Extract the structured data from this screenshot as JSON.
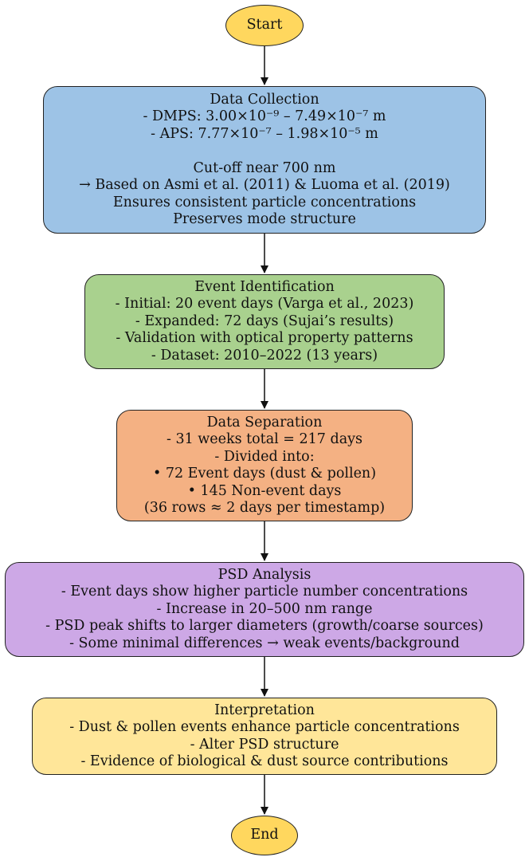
{
  "colors": {
    "terminal": "#FFD75E",
    "collection": "#9DC3E6",
    "identification": "#A9D18E",
    "separation": "#F4B183",
    "analysis": "#CDA8E6",
    "interpretation": "#FFE699",
    "border": "#222222",
    "arrow": "#111111"
  },
  "nodes": {
    "start": {
      "label": "Start"
    },
    "data_collection": {
      "title": "Data Collection",
      "lines": [
        "- DMPS: 3.00×10⁻⁹ – 7.49×10⁻⁷ m",
        "- APS: 7.77×10⁻⁷ – 1.98×10⁻⁵ m",
        "",
        "Cut-off near 700 nm",
        "→ Based on Asmi et al. (2011) & Luoma et al. (2019)",
        "Ensures consistent particle concentrations",
        "Preserves mode structure"
      ]
    },
    "event_identification": {
      "title": "Event Identification",
      "lines": [
        "- Initial: 20 event days (Varga et al., 2023)",
        "- Expanded: 72 days (Sujai’s results)",
        "- Validation with optical property patterns",
        "- Dataset: 2010–2022 (13 years)"
      ]
    },
    "data_separation": {
      "title": "Data Separation",
      "lines": [
        "- 31 weeks total = 217 days",
        "- Divided into:",
        "• 72 Event days (dust & pollen)",
        "• 145 Non-event days",
        "(36 rows ≈ 2 days per timestamp)"
      ]
    },
    "psd_analysis": {
      "title": "PSD Analysis",
      "lines": [
        "- Event days show higher particle number concentrations",
        "- Increase in 20–500 nm range",
        "- PSD peak shifts to larger diameters (growth/coarse sources)",
        "- Some minimal differences → weak events/background"
      ]
    },
    "interpretation": {
      "title": "Interpretation",
      "lines": [
        "- Dust & pollen events enhance particle concentrations",
        "- Alter PSD structure",
        "- Evidence of biological & dust source contributions"
      ]
    },
    "end": {
      "label": "End"
    }
  }
}
